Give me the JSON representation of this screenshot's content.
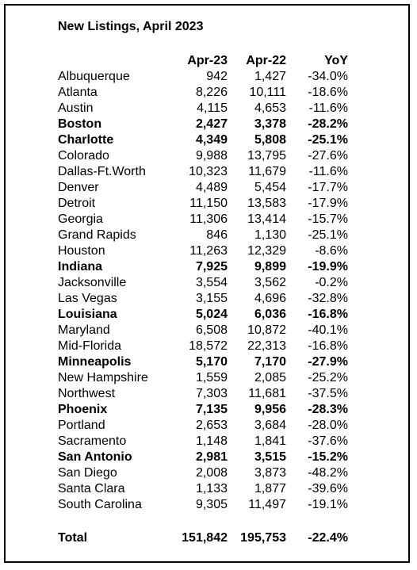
{
  "title": "New Listings, April 2023",
  "headers": {
    "col1": "Apr-23",
    "col2": "Apr-22",
    "col3": "YoY"
  },
  "rows": [
    {
      "name": "Albuquerque",
      "apr23": "942",
      "apr22": "1,427",
      "yoy": "-34.0%",
      "bold": false
    },
    {
      "name": "Atlanta",
      "apr23": "8,226",
      "apr22": "10,111",
      "yoy": "-18.6%",
      "bold": false
    },
    {
      "name": "Austin",
      "apr23": "4,115",
      "apr22": "4,653",
      "yoy": "-11.6%",
      "bold": false
    },
    {
      "name": "Boston",
      "apr23": "2,427",
      "apr22": "3,378",
      "yoy": "-28.2%",
      "bold": true
    },
    {
      "name": "Charlotte",
      "apr23": "4,349",
      "apr22": "5,808",
      "yoy": "-25.1%",
      "bold": true
    },
    {
      "name": "Colorado",
      "apr23": "9,988",
      "apr22": "13,795",
      "yoy": "-27.6%",
      "bold": false
    },
    {
      "name": "Dallas-Ft.Worth",
      "apr23": "10,323",
      "apr22": "11,679",
      "yoy": "-11.6%",
      "bold": false
    },
    {
      "name": "Denver",
      "apr23": "4,489",
      "apr22": "5,454",
      "yoy": "-17.7%",
      "bold": false
    },
    {
      "name": "Detroit",
      "apr23": "11,150",
      "apr22": "13,583",
      "yoy": "-17.9%",
      "bold": false
    },
    {
      "name": "Georgia",
      "apr23": "11,306",
      "apr22": "13,414",
      "yoy": "-15.7%",
      "bold": false
    },
    {
      "name": "Grand Rapids",
      "apr23": "846",
      "apr22": "1,130",
      "yoy": "-25.1%",
      "bold": false
    },
    {
      "name": "Houston",
      "apr23": "11,263",
      "apr22": "12,329",
      "yoy": "-8.6%",
      "bold": false
    },
    {
      "name": "Indiana",
      "apr23": "7,925",
      "apr22": "9,899",
      "yoy": "-19.9%",
      "bold": true
    },
    {
      "name": "Jacksonville",
      "apr23": "3,554",
      "apr22": "3,562",
      "yoy": "-0.2%",
      "bold": false
    },
    {
      "name": "Las Vegas",
      "apr23": "3,155",
      "apr22": "4,696",
      "yoy": "-32.8%",
      "bold": false
    },
    {
      "name": "Louisiana",
      "apr23": "5,024",
      "apr22": "6,036",
      "yoy": "-16.8%",
      "bold": true
    },
    {
      "name": "Maryland",
      "apr23": "6,508",
      "apr22": "10,872",
      "yoy": "-40.1%",
      "bold": false
    },
    {
      "name": "Mid-Florida",
      "apr23": "18,572",
      "apr22": "22,313",
      "yoy": "-16.8%",
      "bold": false
    },
    {
      "name": "Minneapolis",
      "apr23": "5,170",
      "apr22": "7,170",
      "yoy": "-27.9%",
      "bold": true
    },
    {
      "name": "New Hampshire",
      "apr23": "1,559",
      "apr22": "2,085",
      "yoy": "-25.2%",
      "bold": false
    },
    {
      "name": "Northwest",
      "apr23": "7,303",
      "apr22": "11,681",
      "yoy": "-37.5%",
      "bold": false
    },
    {
      "name": "Phoenix",
      "apr23": "7,135",
      "apr22": "9,956",
      "yoy": "-28.3%",
      "bold": true
    },
    {
      "name": "Portland",
      "apr23": "2,653",
      "apr22": "3,684",
      "yoy": "-28.0%",
      "bold": false
    },
    {
      "name": "Sacramento",
      "apr23": "1,148",
      "apr22": "1,841",
      "yoy": "-37.6%",
      "bold": false
    },
    {
      "name": "San Antonio",
      "apr23": "2,981",
      "apr22": "3,515",
      "yoy": "-15.2%",
      "bold": true
    },
    {
      "name": "San Diego",
      "apr23": "2,008",
      "apr22": "3,873",
      "yoy": "-48.2%",
      "bold": false
    },
    {
      "name": "Santa Clara",
      "apr23": "1,133",
      "apr22": "1,877",
      "yoy": "-39.6%",
      "bold": false
    },
    {
      "name": "South Carolina",
      "apr23": "9,305",
      "apr22": "11,497",
      "yoy": "-19.1%",
      "bold": false
    }
  ],
  "total": {
    "name": "Total",
    "apr23": "151,842",
    "apr22": "195,753",
    "yoy": "-22.4%"
  }
}
